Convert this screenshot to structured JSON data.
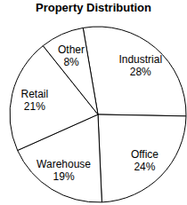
{
  "chart_data": {
    "type": "pie",
    "title": "Property Distribution",
    "categories": [
      "Industrial",
      "Office",
      "Warehouse",
      "Retail",
      "Other"
    ],
    "values": [
      28,
      24,
      19,
      21,
      8
    ],
    "value_labels": [
      "28%",
      "24%",
      "19%",
      "21%",
      "8%"
    ],
    "color": "#ffffff",
    "data_labels": true
  }
}
